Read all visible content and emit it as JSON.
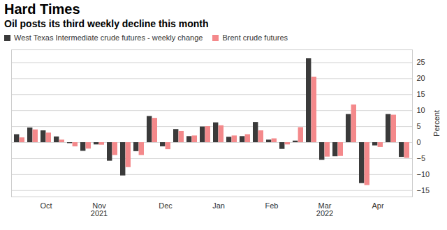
{
  "chart_data": {
    "type": "bar",
    "title": "Hard Times",
    "subtitle": "Oil posts its third weekly decline this month",
    "categories": [
      null,
      null,
      "Oct",
      null,
      null,
      null,
      "Nov\n2021",
      null,
      null,
      null,
      null,
      "Dec",
      null,
      null,
      null,
      "Jan",
      null,
      null,
      null,
      "Feb",
      null,
      null,
      null,
      "Mar\n2022",
      null,
      null,
      null,
      "Apr",
      null,
      null
    ],
    "series": [
      {
        "name": "West Texas Intermediate crude futures - weekly change",
        "color": "#3a3a3a",
        "values": [
          2.5,
          4.6,
          3.7,
          1.8,
          -0.3,
          -2.7,
          -0.7,
          -5.8,
          -10.4,
          -2.8,
          8.2,
          -1.3,
          4.1,
          1.9,
          4.9,
          6.2,
          1.7,
          1.9,
          6.3,
          0.8,
          -2.1,
          0.5,
          26.3,
          -5.5,
          -4.4,
          8.8,
          -12.8,
          -1.0,
          8.8,
          -4.6
        ]
      },
      {
        "name": "Brent crude futures",
        "color": "#f4898b",
        "values": [
          1.5,
          4.0,
          3.0,
          0.8,
          -1.3,
          -2.0,
          -0.8,
          -4.0,
          -7.8,
          -4.0,
          7.6,
          -2.2,
          3.5,
          2.1,
          5.0,
          5.3,
          2.1,
          2.5,
          3.7,
          1.2,
          -0.7,
          4.7,
          20.5,
          -4.5,
          -4.3,
          11.8,
          -13.4,
          -1.5,
          8.6,
          -4.9
        ]
      }
    ],
    "ylabel": "Percent",
    "ylim": [
      -17,
      29
    ],
    "yticks": [
      -15,
      -10,
      -5,
      0,
      5,
      10,
      15,
      20,
      25
    ],
    "grid": true,
    "legend": "top-left"
  }
}
